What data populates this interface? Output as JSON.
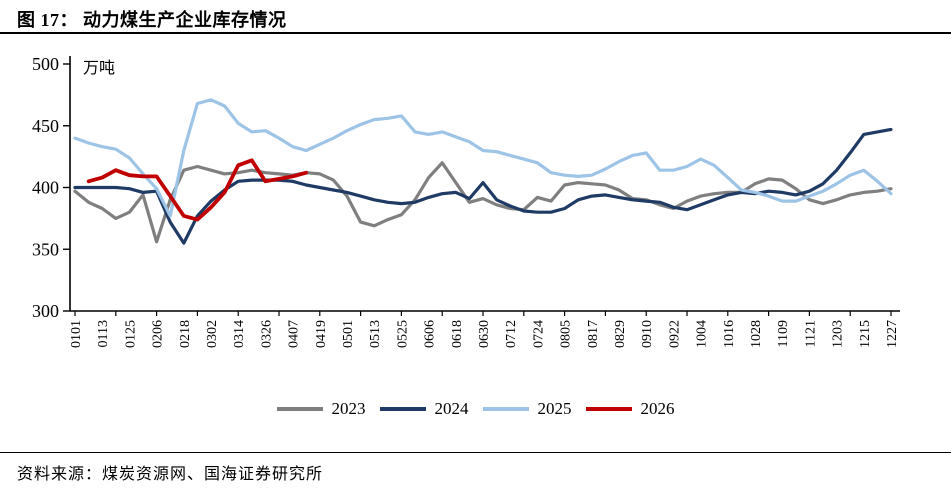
{
  "header": {
    "title": "图 17：  动力煤生产企业库存情况"
  },
  "footer": {
    "source": "资料来源：煤炭资源网、国海证券研究所"
  },
  "chart_data": {
    "type": "line",
    "title": "动力煤生产企业库存情况",
    "ylabel": "万吨",
    "ylim": [
      300,
      500
    ],
    "yticks": [
      300,
      350,
      400,
      450,
      500
    ],
    "grid": false,
    "legend_position": "bottom",
    "x": [
      "0101",
      "0107",
      "0113",
      "0119",
      "0125",
      "0131",
      "0206",
      "0212",
      "0218",
      "0224",
      "0302",
      "0308",
      "0314",
      "0320",
      "0326",
      "0401",
      "0407",
      "0413",
      "0419",
      "0425",
      "0501",
      "0507",
      "0513",
      "0519",
      "0525",
      "0531",
      "0606",
      "0612",
      "0618",
      "0624",
      "0630",
      "0706",
      "0712",
      "0718",
      "0724",
      "0730",
      "0805",
      "0811",
      "0817",
      "0823",
      "0829",
      "0904",
      "0910",
      "0916",
      "0922",
      "0928",
      "1004",
      "1010",
      "1016",
      "1022",
      "1028",
      "1103",
      "1109",
      "1115",
      "1121",
      "1127",
      "1203",
      "1209",
      "1215",
      "1221",
      "1227"
    ],
    "tick_labels": [
      "0101",
      "0113",
      "0125",
      "0206",
      "0218",
      "0302",
      "0314",
      "0326",
      "0407",
      "0419",
      "0501",
      "0513",
      "0525",
      "0606",
      "0618",
      "0630",
      "0712",
      "0724",
      "0805",
      "0817",
      "0829",
      "0910",
      "0922",
      "1004",
      "1016",
      "1028",
      "1109",
      "1121",
      "1203",
      "1215",
      "1227"
    ],
    "series": [
      {
        "name": "2023",
        "color": "#7f7f7f",
        "values": [
          397,
          388,
          383,
          375,
          380,
          394,
          356,
          390,
          414,
          417,
          414,
          411,
          412,
          414,
          412,
          411,
          410,
          412,
          411,
          406,
          393,
          372,
          369,
          374,
          378,
          390,
          408,
          420,
          404,
          388,
          391,
          386,
          383,
          382,
          392,
          389,
          402,
          404,
          403,
          402,
          398,
          391,
          390,
          386,
          383,
          389,
          393,
          395,
          396,
          396,
          403,
          407,
          406,
          399,
          390,
          387,
          390,
          394,
          396,
          397,
          399
        ]
      },
      {
        "name": "2024",
        "color": "#1f3a64",
        "values": [
          400,
          400,
          400,
          400,
          399,
          396,
          397,
          372,
          355,
          377,
          389,
          398,
          405,
          406,
          406,
          406,
          405,
          402,
          400,
          398,
          396,
          393,
          390,
          388,
          387,
          388,
          392,
          395,
          396,
          391,
          404,
          390,
          385,
          381,
          380,
          380,
          383,
          390,
          393,
          394,
          392,
          390,
          389,
          388,
          384,
          382,
          386,
          390,
          394,
          396,
          395,
          397,
          396,
          394,
          397,
          403,
          414,
          428,
          443,
          445,
          447
        ]
      },
      {
        "name": "2025",
        "color": "#9dc3e6",
        "values": [
          440,
          436,
          433,
          431,
          424,
          411,
          399,
          377,
          430,
          468,
          471,
          466,
          452,
          445,
          446,
          440,
          433,
          430,
          435,
          440,
          446,
          451,
          455,
          456,
          458,
          445,
          443,
          445,
          441,
          437,
          430,
          429,
          426,
          423,
          420,
          412,
          410,
          409,
          410,
          415,
          421,
          426,
          428,
          414,
          414,
          417,
          423,
          418,
          408,
          398,
          396,
          393,
          389,
          389,
          393,
          397,
          403,
          410,
          414,
          405,
          395
        ]
      },
      {
        "name": "2026",
        "color": "#c00000",
        "values": [
          null,
          405,
          408,
          414,
          410,
          409,
          409,
          393,
          377,
          374,
          384,
          396,
          418,
          422,
          405,
          407,
          409,
          412,
          null,
          null,
          null,
          null,
          null,
          null,
          null,
          null,
          null,
          null,
          null,
          null,
          null,
          null,
          null,
          null,
          null,
          null,
          null,
          null,
          null,
          null,
          null,
          null,
          null,
          null,
          null,
          null,
          null,
          null,
          null,
          null,
          null,
          null,
          null,
          null,
          null,
          null,
          null,
          null,
          null,
          null,
          null
        ]
      }
    ]
  }
}
